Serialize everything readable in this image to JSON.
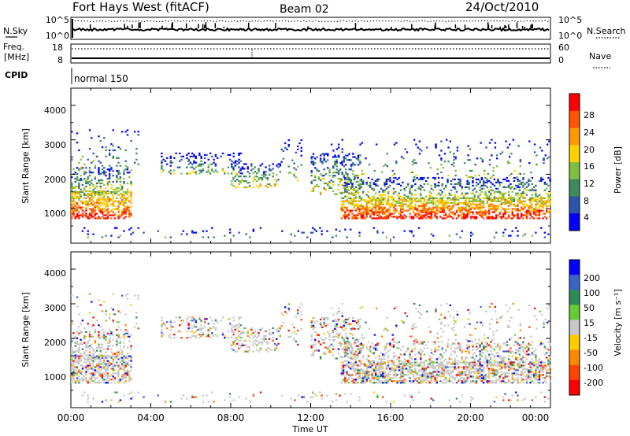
{
  "header": {
    "title": "Fort Hays West (fitACF)",
    "beam": "Beam 02",
    "date": "24/Oct/2010"
  },
  "strip_noise": {
    "left_label": "N.Sky",
    "right_label": "N.Search",
    "left_ticks": [
      "10^5",
      "10^0"
    ],
    "right_ticks": [
      "10^5",
      "10^0"
    ]
  },
  "strip_freq": {
    "left_label_1": "Freq.",
    "left_label_2": "[MHz]",
    "right_label": "Nave",
    "left_ticks": [
      "18",
      "8"
    ],
    "right_ticks": [
      "60",
      "0"
    ]
  },
  "cpid": {
    "label": "CPID",
    "program": "normal 150"
  },
  "colors": {
    "power": [
      "#0000ff",
      "#2a55aa",
      "#3e8a5c",
      "#7fbf3f",
      "#ffd200",
      "#ff9900",
      "#ff5500",
      "#ff0000"
    ],
    "velocity": [
      "#0000ff",
      "#3a63c8",
      "#2e8b57",
      "#66cc33",
      "#c8c8c8",
      "#ffcc00",
      "#ff8800",
      "#ff4400",
      "#ff0000"
    ]
  },
  "chart_data": [
    {
      "type": "heatmap",
      "name": "power",
      "ylabel": "Slant Range [km]",
      "ylim": [
        0,
        4500
      ],
      "yticks": [
        "1000",
        "2000",
        "3000",
        "4000"
      ],
      "xlim_hours": [
        0,
        24
      ],
      "colorbar": {
        "label": "Power [dB]",
        "ticks": [
          "4",
          "8",
          "12",
          "16",
          "20",
          "24",
          "28"
        ],
        "range": [
          0,
          32
        ]
      }
    },
    {
      "type": "heatmap",
      "name": "velocity",
      "ylabel": "Slant Range [km]",
      "ylim": [
        0,
        4500
      ],
      "yticks": [
        "1000",
        "2000",
        "3000",
        "4000"
      ],
      "xlim_hours": [
        0,
        24
      ],
      "colorbar": {
        "label": "Velocity [m s⁻¹]",
        "ticks": [
          "200",
          "100",
          "50",
          "15",
          "-15",
          "-50",
          "-100",
          "-200"
        ]
      }
    }
  ],
  "x_axis": {
    "label": "Time UT",
    "ticks": [
      "00:00",
      "04:00",
      "08:00",
      "12:00",
      "16:00",
      "20:00",
      "00:00"
    ]
  }
}
